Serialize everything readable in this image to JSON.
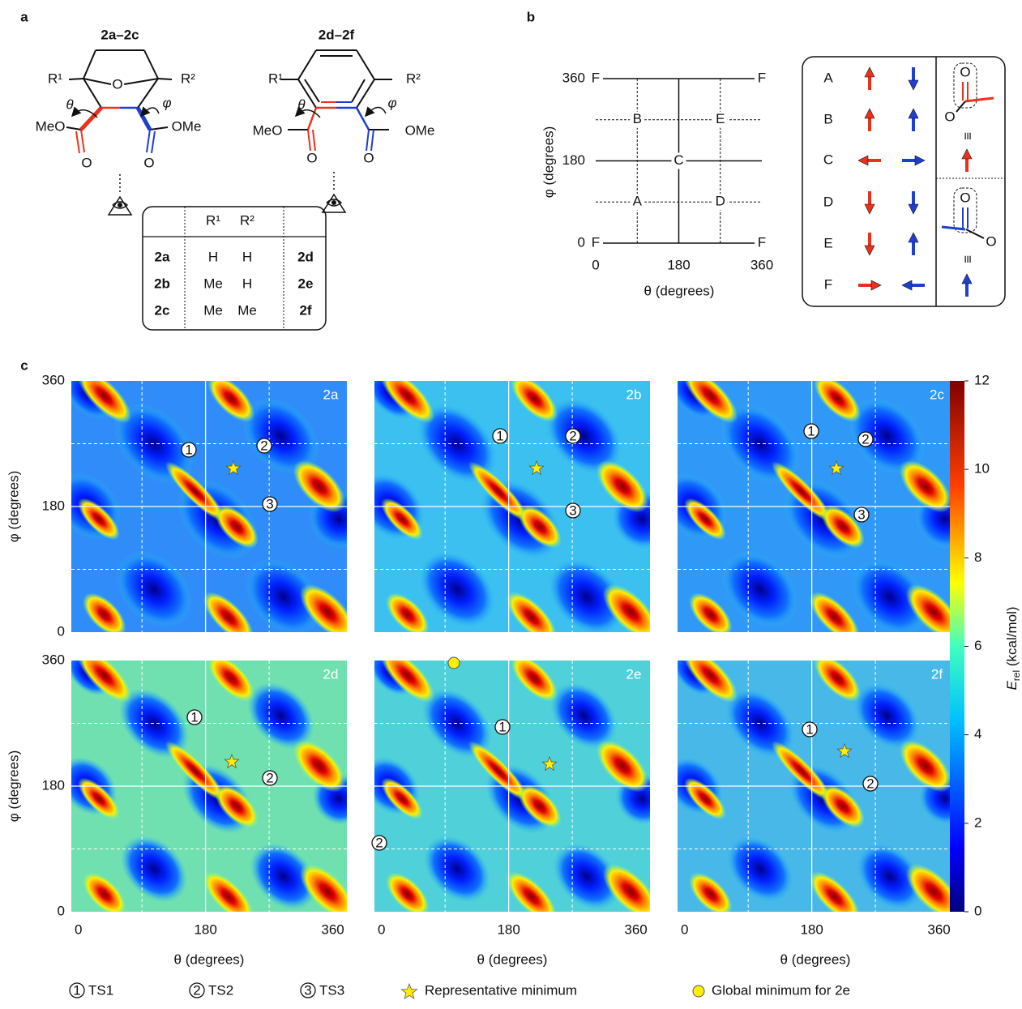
{
  "figure": {
    "panel_a": {
      "label": "a",
      "compound_groups": [
        "2a–2c",
        "2d–2f"
      ],
      "molecule_1": {
        "substituents": [
          "R¹",
          "R²"
        ],
        "bridge_atom": "O",
        "angles": [
          "θ",
          "φ"
        ],
        "ester_groups": [
          "MeO",
          "OMe"
        ],
        "carbonyl_oxygens": [
          "O",
          "O"
        ]
      },
      "molecule_2": {
        "substituents": [
          "R¹",
          "R²"
        ],
        "angles": [
          "θ",
          "φ"
        ],
        "ester_groups": [
          "MeO",
          "OMe"
        ],
        "carbonyl_oxygens": [
          "O",
          "O"
        ]
      },
      "table": {
        "header": [
          "R¹",
          "R²"
        ],
        "rows": [
          [
            "2a",
            "H",
            "H",
            "2d"
          ],
          [
            "2b",
            "Me",
            "H",
            "2e"
          ],
          [
            "2c",
            "Me",
            "Me",
            "2f"
          ]
        ]
      }
    },
    "panel_b": {
      "label": "b",
      "xlabel": "θ (degrees)",
      "ylabel": "φ (degrees)",
      "xlim": [
        0,
        360
      ],
      "ylim": [
        0,
        360
      ],
      "xticks": [
        0,
        180,
        360
      ],
      "yticks": [
        0,
        180,
        360
      ],
      "major_grid": [
        180
      ],
      "minor_grid": [
        90,
        270
      ],
      "points": [
        {
          "label": "A",
          "theta": 90,
          "phi": 90
        },
        {
          "label": "B",
          "theta": 90,
          "phi": 270
        },
        {
          "label": "C",
          "theta": 180,
          "phi": 180
        },
        {
          "label": "D",
          "theta": 270,
          "phi": 90
        },
        {
          "label": "E",
          "theta": 270,
          "phi": 270
        },
        {
          "label": "F",
          "theta": 0,
          "phi": 0
        },
        {
          "label": "F",
          "theta": 360,
          "phi": 0
        },
        {
          "label": "F",
          "theta": 0,
          "phi": 360
        },
        {
          "label": "F",
          "theta": 360,
          "phi": 360
        }
      ],
      "legend": {
        "rows": [
          "A",
          "B",
          "C",
          "D",
          "E",
          "F"
        ],
        "side_labels": [
          "O",
          "O",
          "≡",
          "O",
          "O",
          "≡"
        ]
      }
    },
    "panel_c": {
      "label": "c",
      "maps": [
        "2a",
        "2b",
        "2c",
        "2d",
        "2e",
        "2f"
      ],
      "xlabel": "θ (degrees)",
      "ylabel": "φ (degrees)",
      "xlim": [
        -10,
        380
      ],
      "ylim": [
        0,
        360
      ],
      "xticks": [
        0,
        180,
        360
      ],
      "yticks": [
        0,
        180,
        360
      ],
      "major_grid": [
        180
      ],
      "minor_grid": [
        90,
        270
      ],
      "colorbar": {
        "label": {
          "symbol": "E",
          "subscript": "rel",
          "unit": " (kcal/mol)"
        },
        "lim": [
          0,
          12
        ],
        "ticks": [
          0,
          2,
          4,
          6,
          8,
          10,
          12
        ]
      },
      "legend": {
        "markers": [
          "1",
          "2",
          "3"
        ],
        "entries": [
          "TS1",
          "TS2",
          "TS3",
          "Representative minimum",
          "Global minimum for 2e"
        ]
      }
    }
  }
}
